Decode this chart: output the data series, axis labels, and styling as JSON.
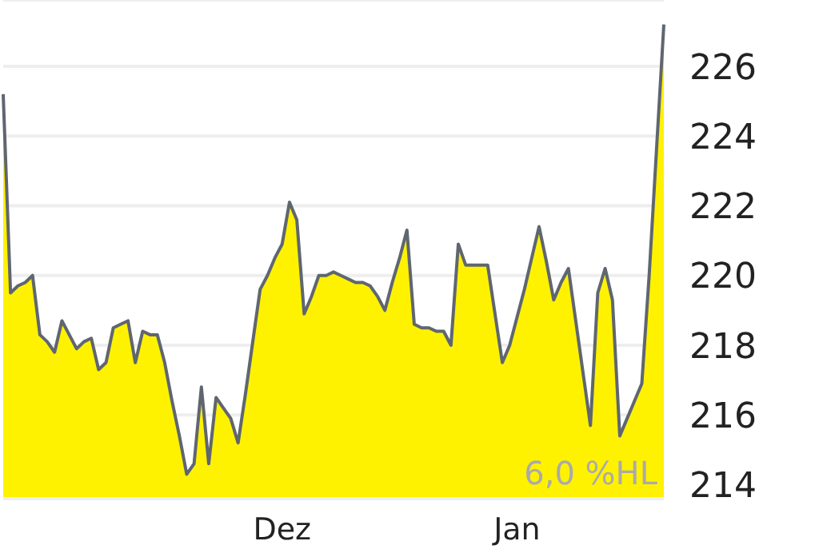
{
  "chart_data": {
    "type": "area",
    "categories": [
      null,
      null,
      null,
      null,
      null,
      null,
      null,
      null,
      null,
      null,
      null,
      null,
      null,
      null,
      null,
      null,
      null,
      null,
      null,
      null,
      null,
      null,
      null,
      null,
      null,
      null,
      null,
      null,
      null,
      null,
      null,
      null,
      null,
      null,
      null,
      null,
      null,
      null,
      "Dez",
      null,
      null,
      null,
      null,
      null,
      null,
      null,
      null,
      null,
      null,
      null,
      null,
      null,
      null,
      null,
      null,
      null,
      null,
      null,
      null,
      null,
      null,
      null,
      null,
      null,
      null,
      null,
      null,
      null,
      null,
      null,
      "Jan",
      null,
      null,
      null,
      null,
      null,
      null,
      null,
      null,
      null,
      null,
      null,
      null,
      null,
      null,
      null,
      null,
      null,
      null,
      null,
      null
    ],
    "series": [
      {
        "color": "#fff200",
        "values": [
          225.2,
          219.5,
          219.7,
          219.8,
          220.0,
          218.3,
          218.1,
          217.8,
          218.7,
          218.3,
          217.9,
          218.1,
          218.2,
          217.3,
          217.5,
          218.5,
          218.6,
          218.7,
          217.5,
          218.4,
          218.3,
          218.3,
          217.5,
          216.4,
          215.4,
          214.3,
          214.6,
          216.8,
          214.6,
          216.5,
          216.2,
          215.9,
          215.2,
          216.6,
          218.1,
          219.6,
          220.0,
          220.5,
          220.9,
          222.1,
          221.6,
          218.9,
          219.4,
          220.0,
          220.0,
          220.1,
          220.0,
          219.9,
          219.8,
          219.8,
          219.7,
          219.4,
          219.0,
          219.8,
          220.5,
          221.3,
          218.6,
          218.5,
          218.5,
          218.4,
          218.4,
          218.0,
          220.9,
          220.3,
          220.3,
          220.3,
          220.3,
          218.9,
          217.5,
          218.0,
          218.8,
          219.6,
          220.5,
          221.4,
          220.4,
          219.3,
          219.8,
          220.2,
          218.7,
          217.2,
          215.7,
          219.5,
          220.2,
          219.3,
          215.4,
          215.9,
          216.4,
          216.9,
          220.0,
          223.6,
          227.2
        ]
      }
    ],
    "ylim": [
      213.6,
      227.9
    ],
    "yticks": [
      214,
      216,
      218,
      220,
      222,
      224,
      226
    ],
    "grid": "y",
    "annotations": [
      "6,0 %HL"
    ]
  }
}
